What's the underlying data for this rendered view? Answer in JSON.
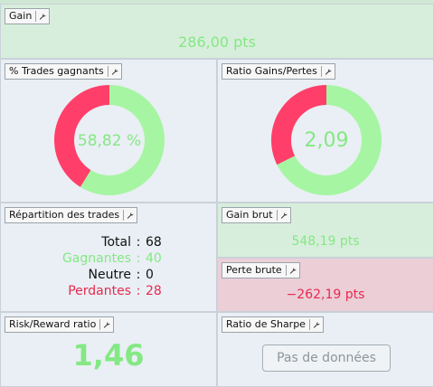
{
  "gain": {
    "title": "Gain",
    "value": "286,00 pts"
  },
  "win_rate": {
    "title": "% Trades gagnants",
    "value": "58,82 %",
    "win_fraction": 0.5882,
    "win_color": "#a6f5a2",
    "loss_color": "#ff3f69"
  },
  "ratio": {
    "title": "Ratio Gains/Pertes",
    "value": "2,09",
    "win_fraction": 0.6764,
    "win_color": "#a6f5a2",
    "loss_color": "#ff3f69"
  },
  "repartition": {
    "title": "Répartition des trades",
    "total_label": "Total",
    "total_value": "68",
    "wins_label": "Gagnantes",
    "wins_value": "40",
    "neutral_label": "Neutre",
    "neutral_value": "0",
    "losses_label": "Perdantes",
    "losses_value": "28"
  },
  "gross_gain": {
    "title": "Gain brut",
    "value": "548,19 pts"
  },
  "gross_loss": {
    "title": "Perte brute",
    "value": "−262,19 pts"
  },
  "risk_reward": {
    "title": "Risk/Reward ratio",
    "value": "1,46"
  },
  "sharpe": {
    "title": "Ratio de Sharpe",
    "button_label": "Pas de données"
  },
  "colors": {
    "positive": "#84e884",
    "negative": "#e8294f"
  }
}
